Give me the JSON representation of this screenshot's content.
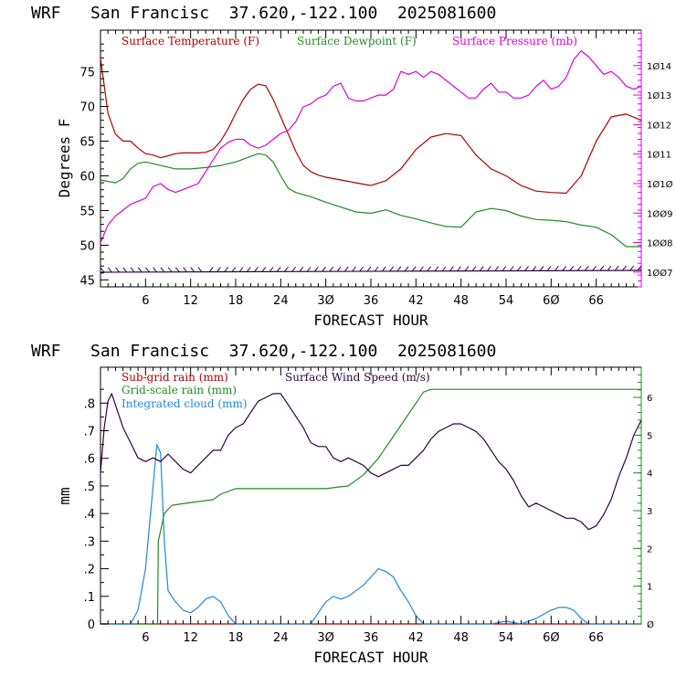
{
  "colors": {
    "temp": "#b00000",
    "dewp": "#228b22",
    "pres": "#dd00dd",
    "subrain": "#b00000",
    "gridrain": "#228b22",
    "cloud": "#1e88d8",
    "wind": "#300040"
  },
  "chart_data": [
    {
      "type": "line",
      "title": "WRF   San Francisc  37.620,-122.100  2025081600",
      "xlabel": "FORECAST HOUR",
      "ylabel": "Degrees F",
      "xlim": [
        0,
        72
      ],
      "ylim": [
        44,
        81
      ],
      "y2lim": [
        1006.5,
        1015.2
      ],
      "xticks": [
        6,
        12,
        18,
        24,
        30,
        36,
        42,
        48,
        54,
        60,
        66
      ],
      "yticks": [
        45,
        50,
        55,
        60,
        65,
        70,
        75
      ],
      "y2ticks": [
        1007,
        1008,
        1009,
        1010,
        1011,
        1012,
        1013,
        1014
      ],
      "series": [
        {
          "name": "Surface Temperature (F)",
          "axis": "left",
          "color_key": "temp",
          "x": [
            0,
            1,
            2,
            3,
            4,
            5,
            6,
            7,
            8,
            9,
            10,
            11,
            12,
            13,
            14,
            15,
            16,
            17,
            18,
            19,
            20,
            21,
            22,
            23,
            24,
            25,
            26,
            27,
            28,
            29,
            30,
            32,
            34,
            36,
            38,
            40,
            42,
            44,
            46,
            48,
            50,
            52,
            54,
            56,
            58,
            60,
            62,
            64,
            66,
            68,
            70,
            72
          ],
          "y": [
            77,
            69,
            66,
            65,
            65,
            64,
            63.2,
            63,
            62.6,
            62.9,
            63.2,
            63.3,
            63.3,
            63.3,
            63.4,
            63.8,
            65,
            66.8,
            69,
            71,
            72.5,
            73.2,
            73,
            71,
            68.5,
            66,
            63.5,
            61.5,
            60.6,
            60.1,
            59.8,
            59.4,
            59,
            58.6,
            59.3,
            61,
            63.8,
            65.6,
            66.1,
            65.8,
            63,
            61,
            60,
            58.6,
            57.8,
            57.6,
            57.5,
            60,
            65,
            68.5,
            68.9,
            68
          ]
        },
        {
          "name": "Surface Dewpoint (F)",
          "axis": "left",
          "color_key": "dewp",
          "x": [
            0,
            2,
            3,
            4,
            5,
            6,
            8,
            10,
            12,
            14,
            16,
            18,
            20,
            21,
            22,
            23,
            24,
            25,
            26,
            28,
            30,
            32,
            34,
            36,
            38,
            40,
            42,
            44,
            46,
            48,
            50,
            52,
            54,
            56,
            58,
            60,
            62,
            64,
            66,
            68,
            70,
            72
          ],
          "y": [
            59.4,
            59,
            59.6,
            61,
            61.8,
            62,
            61.5,
            61,
            61,
            61.2,
            61.5,
            62,
            62.8,
            63.2,
            63,
            62,
            60,
            58.2,
            57.6,
            57,
            56.2,
            55.5,
            54.8,
            54.6,
            55.1,
            54.3,
            53.8,
            53.2,
            52.7,
            52.6,
            54.8,
            55.3,
            55,
            54.2,
            53.7,
            53.6,
            53.4,
            52.9,
            52.6,
            51.5,
            49.8,
            49.8
          ]
        },
        {
          "name": "Surface Pressure (mb)",
          "axis": "right",
          "color_key": "pres",
          "x": [
            0,
            1,
            2,
            3,
            4,
            5,
            6,
            7,
            8,
            9,
            10,
            11,
            12,
            13,
            14,
            15,
            16,
            17,
            18,
            19,
            20,
            21,
            22,
            23,
            24,
            25,
            26,
            27,
            28,
            29,
            30,
            31,
            32,
            33,
            34,
            35,
            36,
            37,
            38,
            39,
            40,
            41,
            42,
            43,
            44,
            45,
            46,
            47,
            48,
            49,
            50,
            51,
            52,
            53,
            54,
            55,
            56,
            57,
            58,
            59,
            60,
            61,
            62,
            63,
            64,
            65,
            66,
            67,
            68,
            69,
            70,
            71,
            72
          ],
          "y": [
            1008,
            1008.6,
            1008.9,
            1009.1,
            1009.3,
            1009.4,
            1009.5,
            1009.9,
            1010,
            1009.8,
            1009.7,
            1009.8,
            1009.9,
            1010,
            1010.4,
            1010.8,
            1011.2,
            1011.4,
            1011.5,
            1011.5,
            1011.3,
            1011.2,
            1011.3,
            1011.5,
            1011.7,
            1011.8,
            1012.1,
            1012.6,
            1012.7,
            1012.9,
            1013,
            1013.3,
            1013.4,
            1012.9,
            1012.8,
            1012.8,
            1012.9,
            1013,
            1013,
            1013.2,
            1013.8,
            1013.7,
            1013.8,
            1013.6,
            1013.8,
            1013.7,
            1013.5,
            1013.3,
            1013.1,
            1012.9,
            1012.9,
            1013.2,
            1013.4,
            1013.1,
            1013.1,
            1012.9,
            1012.9,
            1013,
            1013.3,
            1013.5,
            1013.2,
            1013.3,
            1013.6,
            1014.2,
            1014.5,
            1014.3,
            1014,
            1013.7,
            1013.8,
            1013.6,
            1013.3,
            1013.2,
            1013.3
          ]
        }
      ]
    },
    {
      "type": "line",
      "title": "WRF   San Francisc  37.620,-122.100  2025081600",
      "xlabel": "FORECAST HOUR",
      "ylabel": "mm",
      "xlim": [
        0,
        72
      ],
      "ylim": [
        0,
        0.93
      ],
      "y2lim": [
        0,
        6.8
      ],
      "xticks": [
        6,
        12,
        18,
        24,
        30,
        36,
        42,
        48,
        54,
        60,
        66
      ],
      "yticks": [
        0,
        0.1,
        0.2,
        0.3,
        0.4,
        0.5,
        0.6,
        0.7,
        0.8
      ],
      "ytick_labels": [
        "0",
        ".1",
        ".2",
        ".3",
        ".4",
        ".5",
        ".6",
        ".7",
        ".8"
      ],
      "y2ticks": [
        0,
        1,
        2,
        3,
        4,
        5,
        6
      ],
      "series": [
        {
          "name": "Sub-grid rain (mm)",
          "axis": "left",
          "color_key": "subrain",
          "x": [
            0,
            72
          ],
          "y": [
            0,
            0
          ]
        },
        {
          "name": "Grid-scale rain (mm)",
          "axis": "left",
          "color_key": "gridrain",
          "x": [
            0,
            7.6,
            7.7,
            8.5,
            9.5,
            12,
            15,
            16,
            18,
            24,
            30,
            33,
            34,
            35,
            36,
            37,
            38,
            39,
            40,
            41,
            42,
            43,
            44,
            46,
            50,
            60,
            72
          ],
          "y": [
            0,
            0,
            0.3,
            0.4,
            0.43,
            0.44,
            0.45,
            0.47,
            0.49,
            0.49,
            0.49,
            0.5,
            0.52,
            0.54,
            0.57,
            0.6,
            0.64,
            0.68,
            0.72,
            0.76,
            0.8,
            0.84,
            0.85,
            0.85,
            0.85,
            0.85,
            0.85
          ]
        },
        {
          "name": "Integrated cloud (mm)",
          "axis": "left",
          "color_key": "cloud",
          "x": [
            0,
            4,
            5,
            6,
            6.5,
            7,
            7.5,
            8,
            8.5,
            9,
            9.5,
            10,
            11,
            12,
            13,
            14,
            15,
            16,
            17,
            18,
            19,
            20,
            28,
            29,
            30,
            31,
            32,
            33,
            34,
            35,
            36,
            37,
            38,
            39,
            40,
            41,
            42,
            43,
            44,
            52,
            54,
            56,
            58,
            60,
            61,
            62,
            63,
            64,
            65,
            66,
            72
          ],
          "y": [
            0,
            0,
            0.05,
            0.2,
            0.35,
            0.5,
            0.65,
            0.62,
            0.3,
            0.12,
            0.1,
            0.08,
            0.05,
            0.04,
            0.06,
            0.09,
            0.1,
            0.08,
            0.03,
            0,
            0,
            0,
            0,
            0.04,
            0.08,
            0.1,
            0.09,
            0.1,
            0.12,
            0.14,
            0.17,
            0.2,
            0.19,
            0.17,
            0.12,
            0.08,
            0.03,
            0,
            0,
            0,
            0.01,
            0,
            0.02,
            0.05,
            0.06,
            0.06,
            0.05,
            0.02,
            0,
            0,
            0
          ]
        },
        {
          "name": "Surface Wind Speed (m/s)",
          "axis": "right",
          "color_key": "wind",
          "x": [
            0,
            0.5,
            1,
            1.5,
            2,
            3,
            4,
            5,
            6,
            7,
            8,
            9,
            10,
            11,
            12,
            13,
            14,
            15,
            16,
            17,
            18,
            19,
            20,
            21,
            22,
            23,
            24,
            25,
            26,
            27,
            28,
            29,
            30,
            31,
            32,
            33,
            34,
            35,
            36,
            37,
            38,
            39,
            40,
            41,
            42,
            43,
            44,
            45,
            46,
            47,
            48,
            49,
            50,
            51,
            52,
            53,
            54,
            55,
            56,
            57,
            58,
            59,
            60,
            61,
            62,
            63,
            64,
            65,
            66,
            67,
            68,
            69,
            70,
            71,
            72
          ],
          "y": [
            4,
            5.2,
            5.9,
            6.1,
            5.8,
            5.2,
            4.8,
            4.4,
            4.3,
            4.4,
            4.3,
            4.5,
            4.3,
            4.1,
            4,
            4.2,
            4.4,
            4.6,
            4.6,
            5,
            5.2,
            5.3,
            5.6,
            5.9,
            6,
            6.1,
            6.1,
            5.8,
            5.5,
            5.2,
            4.8,
            4.7,
            4.7,
            4.4,
            4.3,
            4.4,
            4.3,
            4.2,
            4,
            3.9,
            4,
            4.1,
            4.2,
            4.2,
            4.4,
            4.6,
            4.9,
            5.1,
            5.2,
            5.3,
            5.3,
            5.2,
            5.1,
            4.9,
            4.6,
            4.3,
            4.1,
            3.8,
            3.4,
            3.1,
            3.2,
            3.1,
            3,
            2.9,
            2.8,
            2.8,
            2.7,
            2.5,
            2.6,
            2.9,
            3.3,
            3.9,
            4.4,
            5,
            5.4
          ]
        }
      ]
    }
  ]
}
